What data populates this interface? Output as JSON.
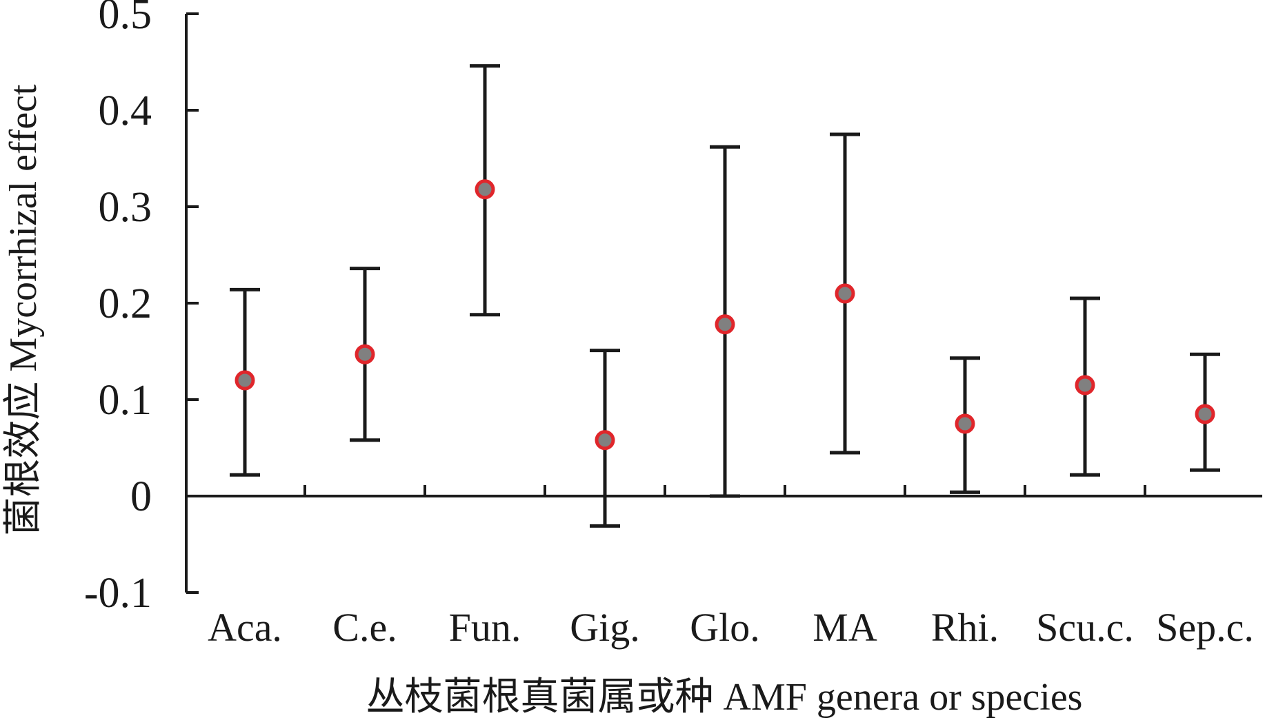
{
  "chart_data": {
    "type": "scatter",
    "subtype": "point-with-error-bars",
    "categories": [
      "Aca.",
      "C.e.",
      "Fun.",
      "Gig.",
      "Glo.",
      "MA",
      "Rhi.",
      "Scu.c.",
      "Sep.c."
    ],
    "values": [
      0.12,
      0.147,
      0.318,
      0.058,
      0.178,
      0.21,
      0.075,
      0.115,
      0.085
    ],
    "error_upper": [
      0.214,
      0.236,
      0.446,
      0.151,
      0.362,
      0.375,
      0.143,
      0.205,
      0.147
    ],
    "error_lower": [
      0.022,
      0.058,
      0.188,
      -0.031,
      0.0,
      0.045,
      0.004,
      0.022,
      0.027
    ],
    "xlabel": "丛枝菌根真菌属或种 AMF genera or species",
    "ylabel": "菌根效应 Mycorrhizal effect",
    "ylim": [
      -0.1,
      0.5
    ],
    "yticks": [
      "-0.1",
      "0",
      "0.1",
      "0.2",
      "0.3",
      "0.4",
      "0.5"
    ],
    "ytick_values": [
      -0.1,
      0,
      0.1,
      0.2,
      0.3,
      0.4,
      0.5
    ],
    "grid": false,
    "colors": {
      "marker_fill": "#808080",
      "marker_edge": "#e0262b",
      "lines": "#1a1a1a"
    }
  }
}
